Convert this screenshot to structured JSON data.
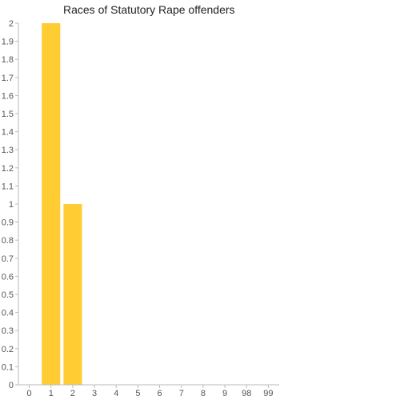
{
  "chart_data": {
    "type": "bar",
    "title": "Races of Statutory Rape offenders",
    "xlabel": "",
    "ylabel": "",
    "categories": [
      "0",
      "1",
      "2",
      "3",
      "4",
      "5",
      "6",
      "7",
      "8",
      "9",
      "98",
      "99"
    ],
    "values": [
      0,
      2,
      1,
      0,
      0,
      0,
      0,
      0,
      0,
      0,
      0,
      0
    ],
    "ylim": [
      0,
      2
    ],
    "yticks": [
      "0",
      "0.1",
      "0.2",
      "0.3",
      "0.4",
      "0.5",
      "0.6",
      "0.7",
      "0.8",
      "0.9",
      "1",
      "1.1",
      "1.2",
      "1.3",
      "1.4",
      "1.5",
      "1.6",
      "1.7",
      "1.8",
      "1.9",
      "2"
    ],
    "ytick_values": [
      0,
      0.1,
      0.2,
      0.3,
      0.4,
      0.5,
      0.6,
      0.7,
      0.8,
      0.9,
      1,
      1.1,
      1.2,
      1.3,
      1.4,
      1.5,
      1.6,
      1.7,
      1.8,
      1.9,
      2
    ],
    "grid": false,
    "colors": {
      "bar": "#ffcc33",
      "axis": "#bbbbbb",
      "text": "#555555"
    }
  }
}
